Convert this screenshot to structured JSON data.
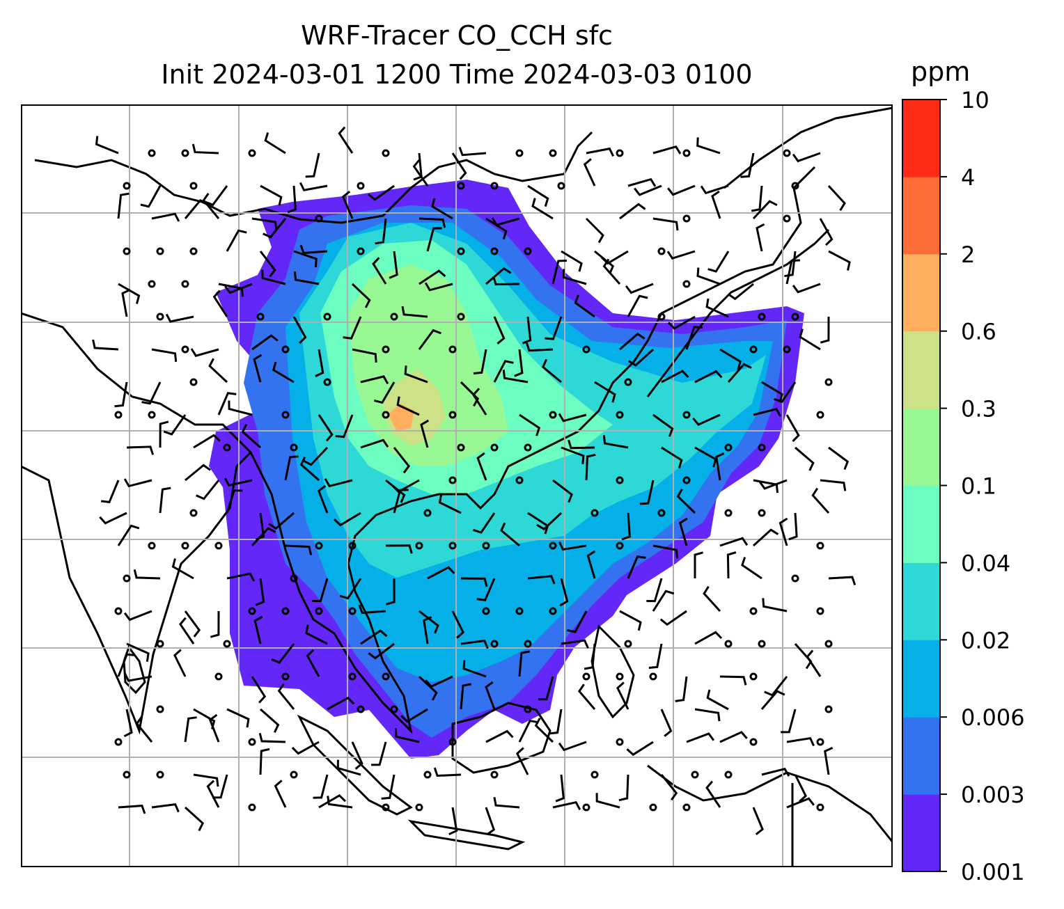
{
  "title_line1": "WRF-Tracer CO_CCH sfc",
  "title_line2": "Init 2024-03-01 1200 Time 2024-03-03 0100",
  "colorbar": {
    "unit": "ppm",
    "ticks": [
      "0.001",
      "0.003",
      "0.006",
      "0.02",
      "0.04",
      "0.1",
      "0.3",
      "0.6",
      "2",
      "4",
      "10"
    ],
    "colors": [
      "#6328f7",
      "#3473f0",
      "#05b0e8",
      "#2ed8d6",
      "#6cfdc0",
      "#98f994",
      "#cde287",
      "#feae5d",
      "#fe6d38",
      "#ff2b17"
    ]
  },
  "map": {
    "plume_color_order": [
      "lowest",
      "low",
      "mid-low",
      "mid",
      "mid-high",
      "high"
    ],
    "wind_symbols": "barbs and calm circles"
  }
}
